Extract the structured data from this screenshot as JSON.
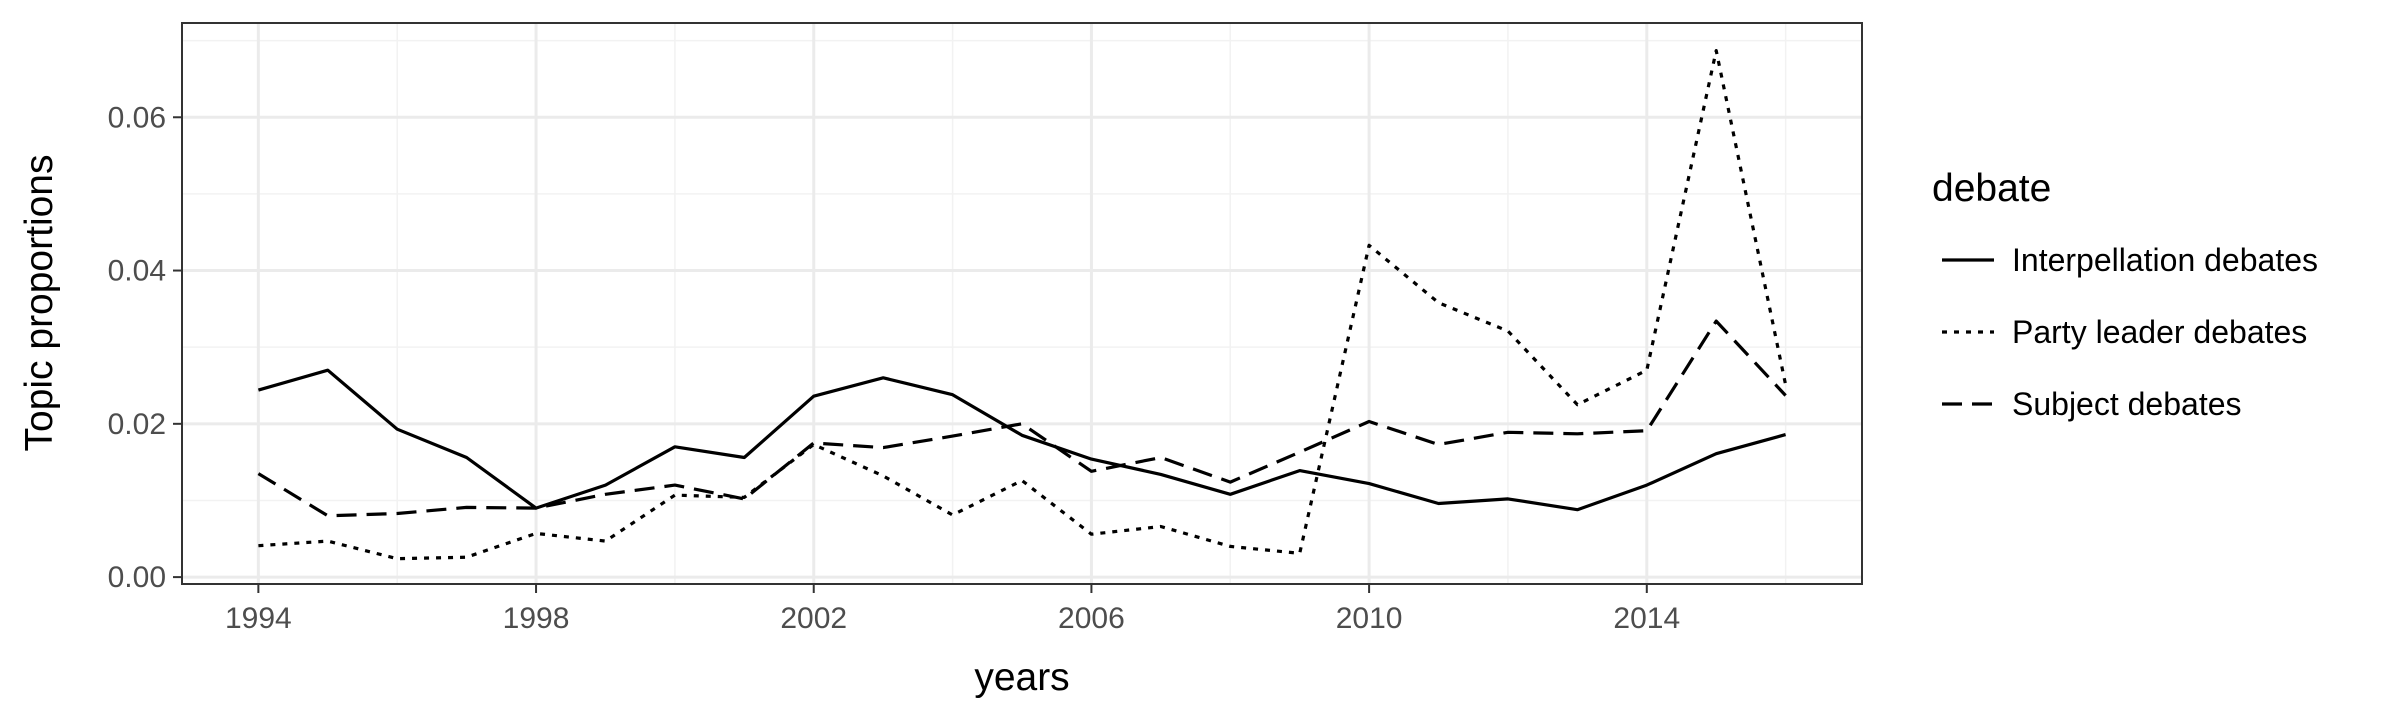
{
  "chart_data": {
    "type": "line",
    "title": "",
    "xlabel": "years",
    "ylabel": "Topic proportions",
    "xlim": [
      1992.9,
      2017.1
    ],
    "ylim": [
      -0.0009,
      0.0723
    ],
    "x_ticks": [
      1994,
      1998,
      2002,
      2006,
      2010,
      2014
    ],
    "x_tick_labels": [
      "1994",
      "1998",
      "2002",
      "2006",
      "2010",
      "2014"
    ],
    "y_ticks": [
      0.0,
      0.02,
      0.04,
      0.06
    ],
    "y_tick_labels": [
      "0.00",
      "0.02",
      "0.04",
      "0.06"
    ],
    "x_minor_ticks": [
      1996,
      2000,
      2004,
      2008,
      2012,
      2016
    ],
    "y_minor_ticks": [
      0.01,
      0.03,
      0.05,
      0.07
    ],
    "grid": true,
    "theme": "bw",
    "legend": {
      "title": "debate",
      "position": "right"
    },
    "x": [
      1994,
      1995,
      1996,
      1997,
      1998,
      1999,
      2000,
      2001,
      2002,
      2003,
      2004,
      2005,
      2006,
      2007,
      2008,
      2009,
      2010,
      2011,
      2012,
      2013,
      2014,
      2015,
      2016
    ],
    "series": [
      {
        "name": "Interpellation debates",
        "linetype": "solid",
        "values": [
          0.0244,
          0.027,
          0.0193,
          0.0156,
          0.009,
          0.012,
          0.017,
          0.0156,
          0.0236,
          0.026,
          0.0238,
          0.0185,
          0.0154,
          0.0134,
          0.0108,
          0.0139,
          0.0122,
          0.0096,
          0.0102,
          0.0088,
          0.012,
          0.0161,
          0.0186
        ]
      },
      {
        "name": "Party leader debates",
        "linetype": "dotted",
        "values": [
          0.0041,
          0.0047,
          0.0024,
          0.0026,
          0.0057,
          0.0047,
          0.0107,
          0.0104,
          0.0173,
          0.0132,
          0.0081,
          0.0126,
          0.0056,
          0.0066,
          0.004,
          0.0031,
          0.0433,
          0.0358,
          0.0321,
          0.0225,
          0.027,
          0.0687,
          0.0251
        ]
      },
      {
        "name": "Subject debates",
        "linetype": "dashed",
        "values": [
          0.0135,
          0.008,
          0.0083,
          0.0091,
          0.009,
          0.0108,
          0.012,
          0.0102,
          0.0175,
          0.0169,
          0.0184,
          0.02,
          0.0138,
          0.0156,
          0.0124,
          0.0163,
          0.0203,
          0.0173,
          0.0189,
          0.0187,
          0.0191,
          0.0334,
          0.0237
        ]
      }
    ],
    "colors": {
      "line": "#000000",
      "panel_border": "#333333",
      "grid_major": "#ebebeb",
      "grid_minor": "#f2f2f2",
      "tick_text": "#4d4d4d",
      "background": "#ffffff"
    }
  }
}
